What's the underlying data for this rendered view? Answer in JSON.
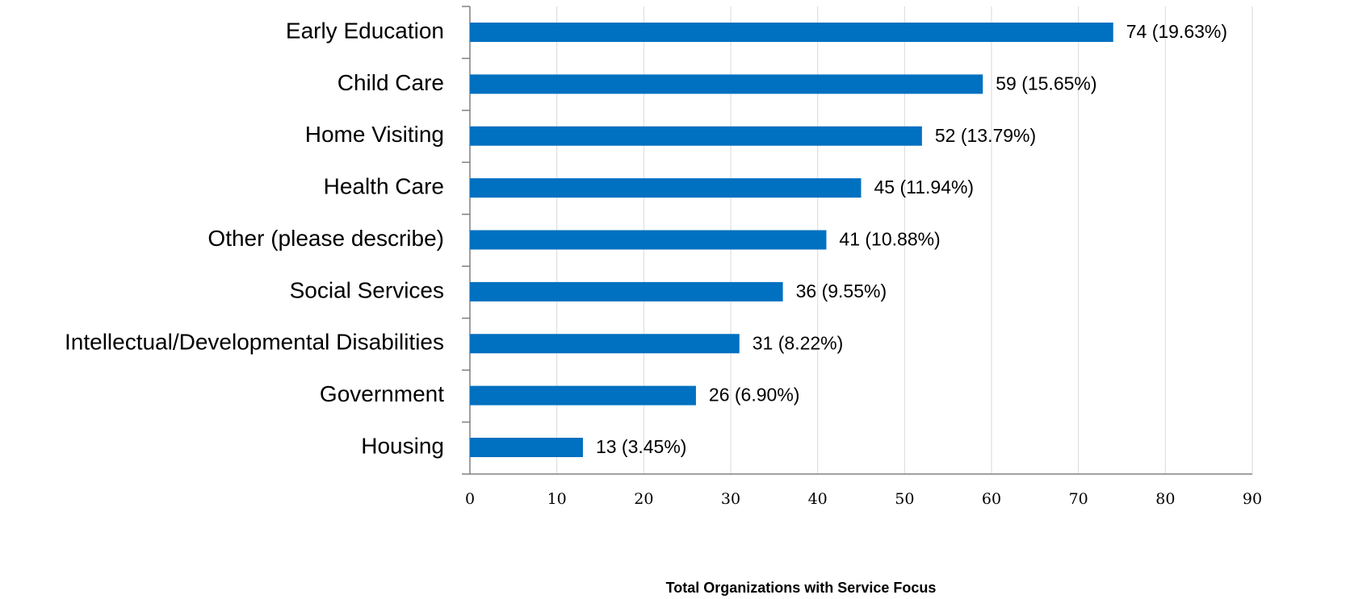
{
  "chart_data": {
    "type": "bar",
    "orientation": "horizontal",
    "x_label": "Total Organizations with Service Focus",
    "categories": [
      "Early Education",
      "Child Care",
      "Home Visiting",
      "Health Care",
      "Other (please describe)",
      "Social Services",
      "Intellectual/Developmental Disabilities",
      "Government",
      "Housing"
    ],
    "values": [
      74,
      59,
      52,
      45,
      41,
      36,
      31,
      26,
      13
    ],
    "value_labels": [
      "74 (19.63%)",
      "59 (15.65%)",
      "52 (13.79%)",
      "45 (11.94%)",
      "41 (10.88%)",
      "36 (9.55%)",
      "31 (8.22%)",
      "26 (6.90%)",
      "13 (3.45%)"
    ],
    "color": "#0070c0",
    "xlim": [
      0,
      90
    ],
    "xticks": [
      0,
      10,
      20,
      30,
      40,
      50,
      60,
      70,
      80,
      90
    ],
    "grid": true
  }
}
